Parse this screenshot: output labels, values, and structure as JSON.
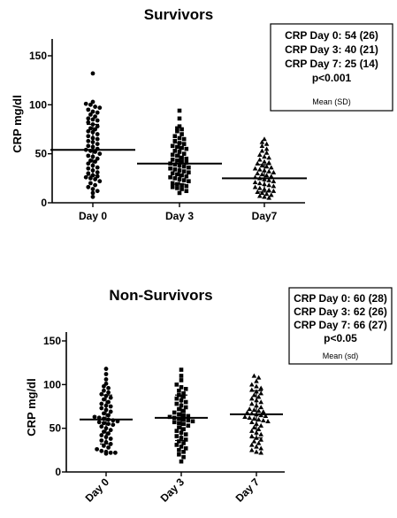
{
  "chart_data": [
    {
      "type": "scatter",
      "title": "Survivors",
      "ylabel": "CRP mg/dl",
      "xlabel": "",
      "ylim": [
        0,
        150
      ],
      "yticks": [
        0,
        50,
        100,
        150
      ],
      "categories": [
        "Day 0",
        "Day 3",
        "Day7"
      ],
      "markers": [
        "circle",
        "square",
        "triangle"
      ],
      "means": [
        54,
        40,
        25
      ],
      "sds": [
        26,
        21,
        14
      ],
      "series": [
        {
          "category": "Day 0",
          "values": [
            132,
            103,
            101,
            100,
            98,
            97,
            95,
            93,
            92,
            90,
            88,
            86,
            85,
            84,
            82,
            80,
            78,
            76,
            75,
            73,
            72,
            70,
            68,
            66,
            65,
            63,
            62,
            60,
            58,
            57,
            55,
            54,
            53,
            52,
            50,
            48,
            47,
            45,
            43,
            42,
            40,
            38,
            36,
            35,
            33,
            31,
            30,
            28,
            27,
            26,
            25,
            24,
            22,
            20,
            18,
            16,
            14,
            12,
            10,
            6
          ]
        },
        {
          "category": "Day 3",
          "values": [
            94,
            86,
            78,
            76,
            75,
            73,
            70,
            68,
            66,
            65,
            63,
            61,
            60,
            58,
            57,
            56,
            55,
            53,
            52,
            50,
            49,
            48,
            46,
            45,
            44,
            43,
            42,
            41,
            40,
            39,
            38,
            37,
            36,
            35,
            34,
            33,
            32,
            31,
            30,
            29,
            28,
            27,
            26,
            25,
            24,
            23,
            22,
            20,
            19,
            18,
            17,
            16,
            15,
            14,
            12,
            10
          ]
        },
        {
          "category": "Day7",
          "values": [
            65,
            62,
            60,
            58,
            55,
            53,
            51,
            49,
            47,
            46,
            44,
            42,
            41,
            40,
            38,
            37,
            36,
            35,
            34,
            33,
            32,
            31,
            30,
            29,
            28,
            27,
            26,
            25,
            24,
            23,
            22,
            21,
            20,
            19,
            18,
            17,
            16,
            15,
            14,
            13,
            12,
            11,
            10,
            9,
            8,
            7,
            6,
            5
          ]
        }
      ],
      "stats_box": {
        "lines": [
          "CRP Day 0: 54 (26)",
          "CRP Day 3: 40 (21)",
          "CRP Day 7: 25 (14)",
          "p<0.001"
        ],
        "note": "Mean (SD)"
      }
    },
    {
      "type": "scatter",
      "title": "Non-Survivors",
      "ylabel": "CRP mg/dl",
      "xlabel": "",
      "ylim": [
        0,
        150
      ],
      "yticks": [
        0,
        50,
        100,
        150
      ],
      "categories": [
        "Day 0",
        "Day 3",
        "Day 7"
      ],
      "markers": [
        "circle",
        "square",
        "triangle"
      ],
      "means": [
        60,
        62,
        66
      ],
      "sds": [
        28,
        26,
        27
      ],
      "series": [
        {
          "category": "Day 0",
          "values": [
            118,
            112,
            106,
            101,
            98,
            96,
            93,
            91,
            89,
            87,
            85,
            83,
            80,
            78,
            76,
            75,
            73,
            71,
            69,
            67,
            65,
            63,
            62,
            61,
            60,
            59,
            58,
            57,
            56,
            55,
            54,
            52,
            50,
            48,
            46,
            44,
            42,
            40,
            38,
            36,
            34,
            32,
            30,
            28,
            26,
            24,
            23,
            22,
            22,
            21
          ]
        },
        {
          "category": "Day 3",
          "values": [
            117,
            110,
            105,
            100,
            97,
            95,
            93,
            90,
            88,
            86,
            84,
            82,
            80,
            78,
            76,
            74,
            72,
            70,
            68,
            66,
            65,
            64,
            63,
            62,
            61,
            60,
            59,
            58,
            57,
            56,
            55,
            53,
            51,
            49,
            47,
            45,
            43,
            41,
            39,
            37,
            35,
            33,
            31,
            29,
            27,
            25,
            23,
            20,
            17,
            12
          ]
        },
        {
          "category": "Day 7",
          "values": [
            110,
            108,
            104,
            100,
            98,
            96,
            94,
            92,
            90,
            88,
            86,
            84,
            82,
            80,
            78,
            76,
            74,
            72,
            71,
            70,
            69,
            68,
            67,
            66,
            65,
            64,
            63,
            62,
            61,
            60,
            59,
            58,
            57,
            55,
            53,
            51,
            49,
            47,
            45,
            43,
            41,
            39,
            37,
            35,
            33,
            31,
            29,
            27,
            25,
            23,
            22
          ]
        }
      ],
      "stats_box": {
        "lines": [
          "CRP Day 0: 60 (28)",
          "CRP Day 3: 62 (26)",
          "CRP Day 7: 66 (27)",
          "p<0.05"
        ],
        "note": "Mean (sd)"
      }
    }
  ]
}
